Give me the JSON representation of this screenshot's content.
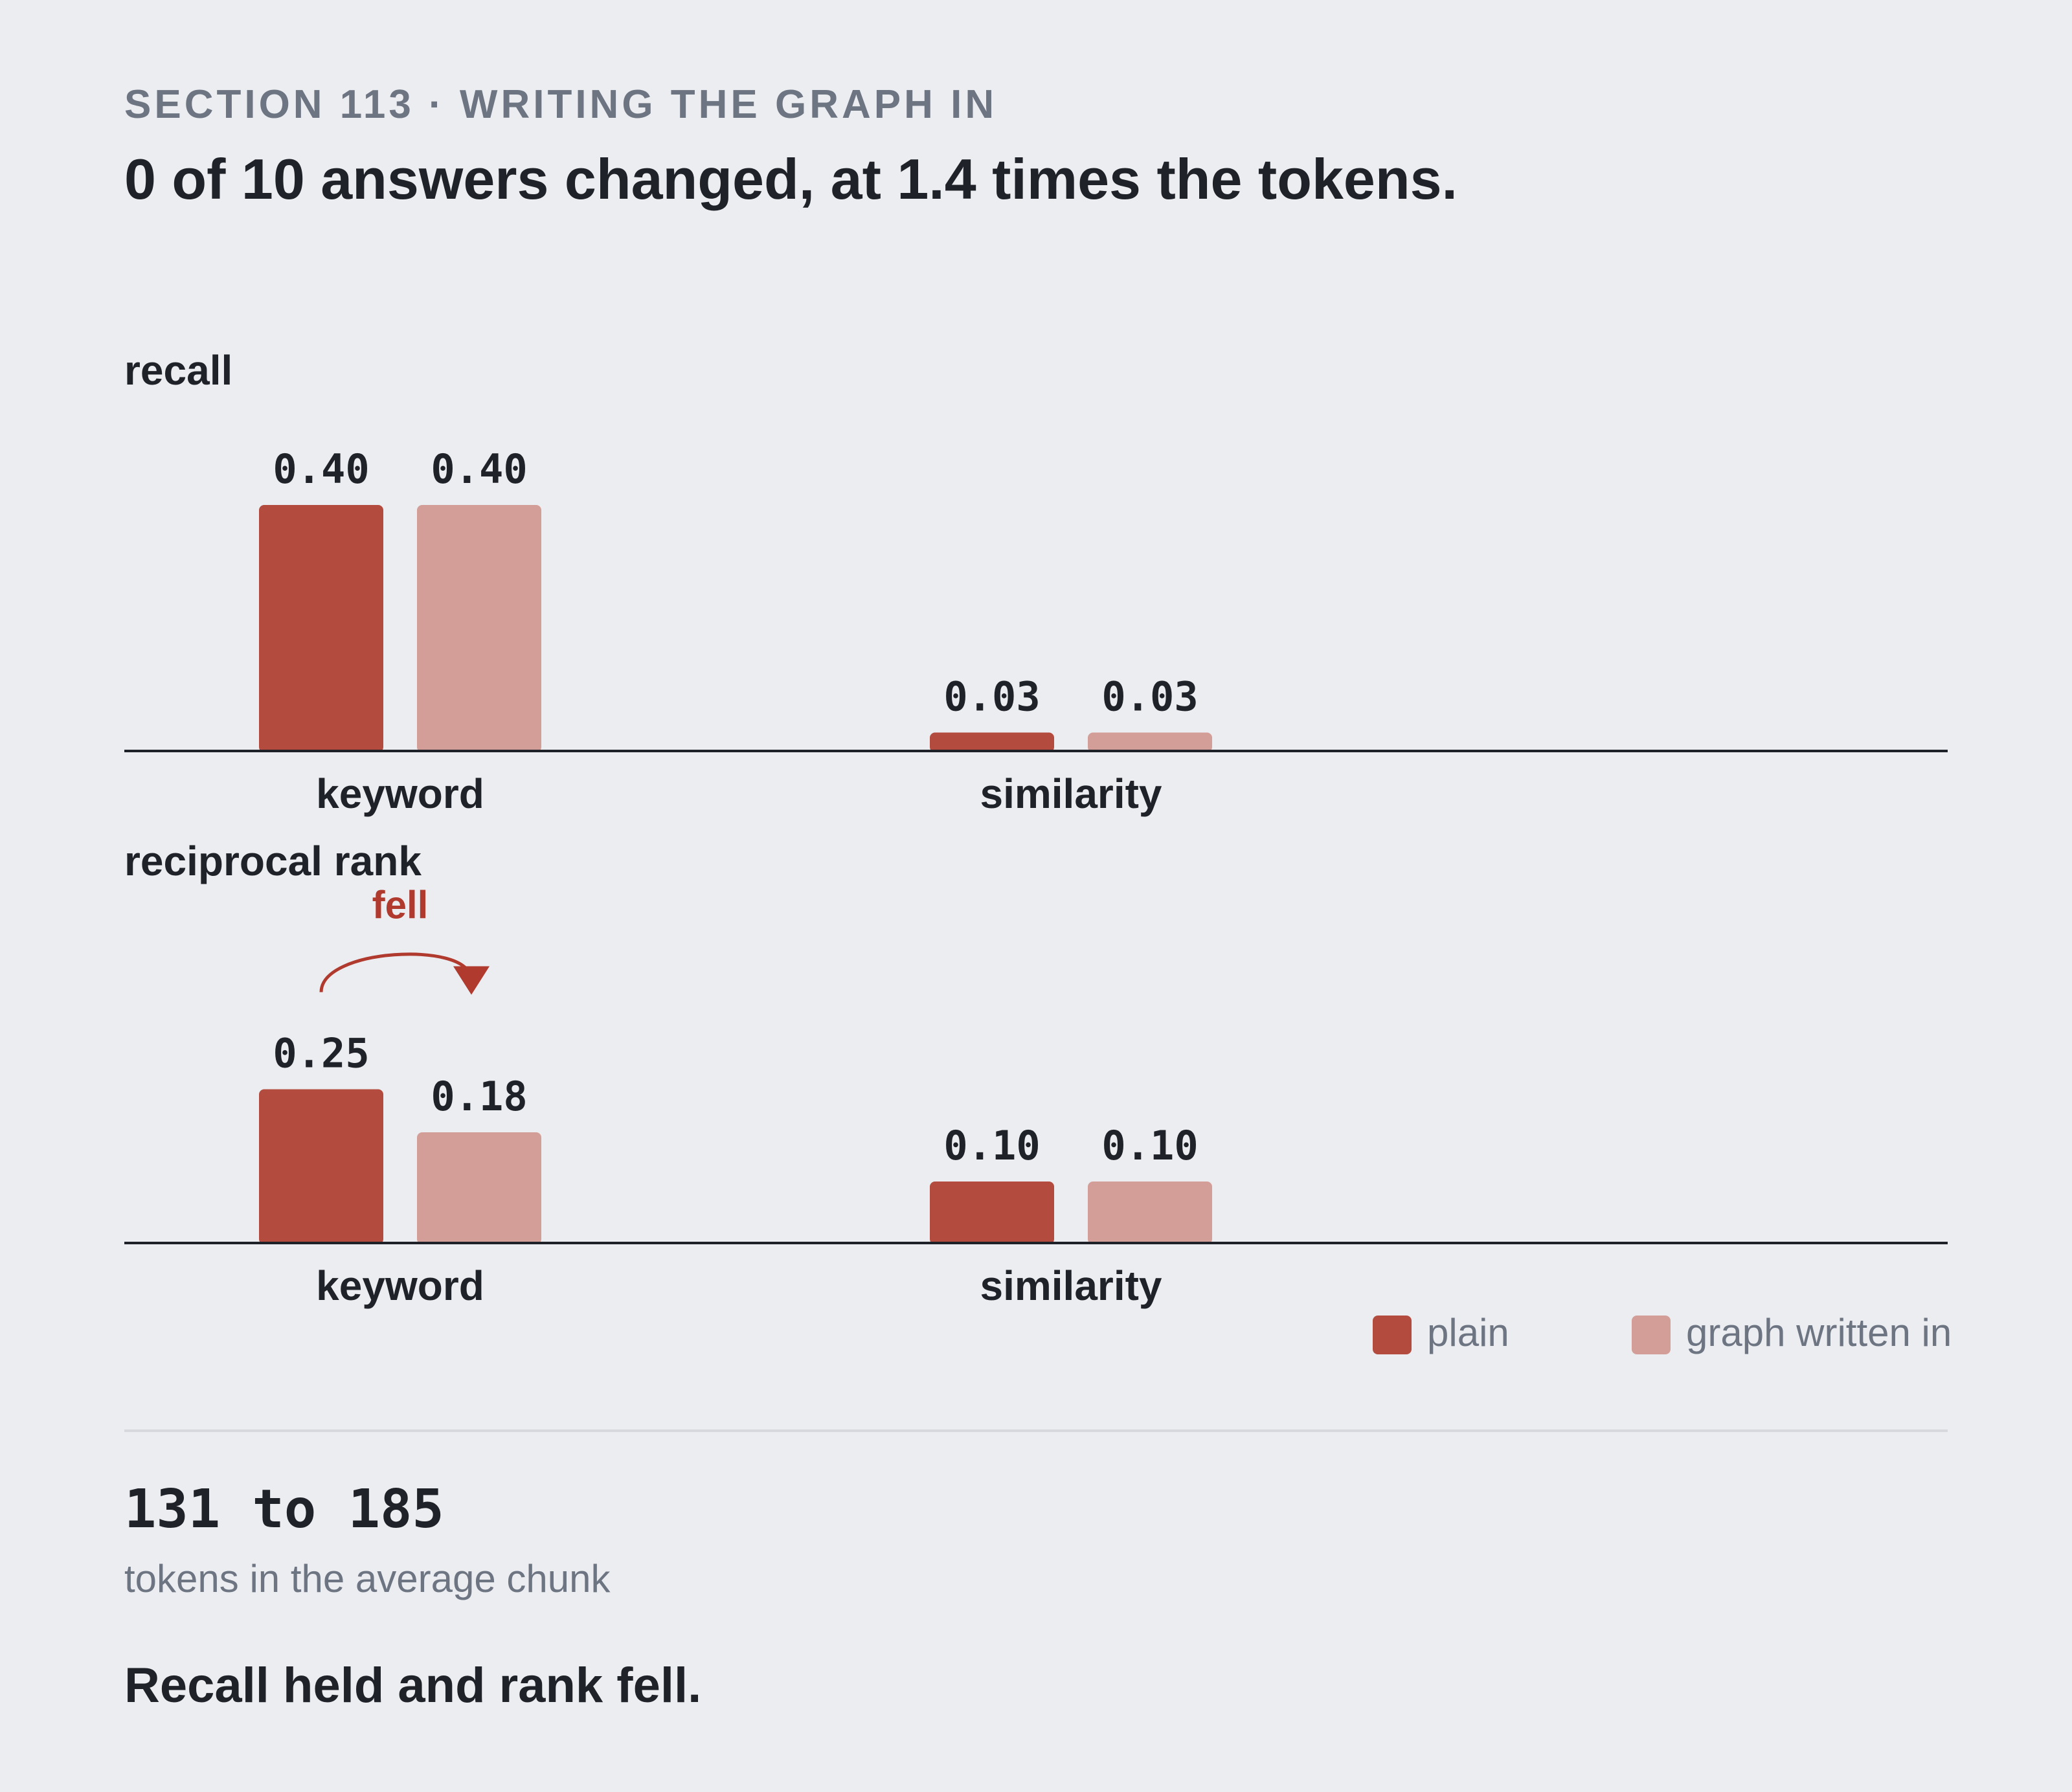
{
  "header": {
    "eyebrow": "SECTION 113 · WRITING THE GRAPH IN",
    "headline": "0 of 10 answers changed, at 1.4 times the tokens."
  },
  "colors": {
    "plain": "#b34c3f",
    "graph_written_in": "#d39e98",
    "accent": "#b03a2e",
    "text": "#1f2228",
    "muted": "#6e7582"
  },
  "chart_data": [
    {
      "type": "bar",
      "title": "recall",
      "categories": [
        "keyword",
        "similarity"
      ],
      "series": [
        {
          "name": "plain",
          "values": [
            0.4,
            0.03
          ],
          "labels": [
            "0.40",
            "0.03"
          ]
        },
        {
          "name": "graph written in",
          "values": [
            0.4,
            0.03
          ],
          "labels": [
            "0.40",
            "0.03"
          ]
        }
      ],
      "ylim": [
        0,
        0.4
      ]
    },
    {
      "type": "bar",
      "title": "reciprocal rank",
      "categories": [
        "keyword",
        "similarity"
      ],
      "series": [
        {
          "name": "plain",
          "values": [
            0.25,
            0.1
          ],
          "labels": [
            "0.25",
            "0.10"
          ]
        },
        {
          "name": "graph written in",
          "values": [
            0.18,
            0.1
          ],
          "labels": [
            "0.18",
            "0.10"
          ]
        }
      ],
      "ylim": [
        0,
        0.4
      ],
      "annotation": {
        "text": "fell",
        "category": "keyword"
      }
    }
  ],
  "legend": {
    "plain": "plain",
    "graph_written_in": "graph written in"
  },
  "stat": {
    "value": "131 to 185",
    "caption": "tokens in the average chunk"
  },
  "conclusion": "Recall held and rank fell."
}
